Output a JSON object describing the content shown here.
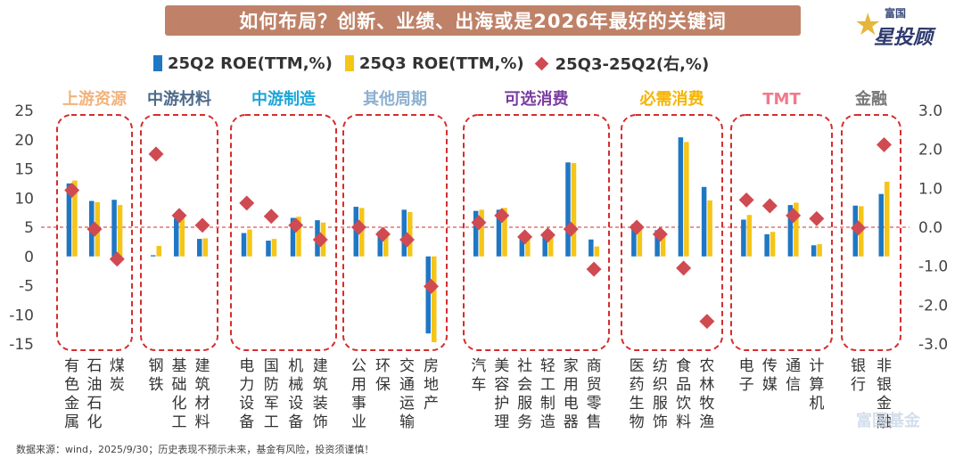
{
  "title": "如何布局？创新、业绩、出海或是2026年最好的关键词",
  "logo": {
    "brand_small": "富国",
    "brand_big": "星投顾"
  },
  "footer": "数据来源：wind，2025/9/30；历史表现不预示未来，基金有风险，投资须谨慎！",
  "watermark": "富国基金",
  "colors": {
    "q2": "#1f77c4",
    "q3": "#f5c518",
    "diff": "#d04a52",
    "title_bg": "#bf8268",
    "box": "#d62d2d"
  },
  "chart_data": {
    "type": "bar",
    "title": "如何布局？创新、业绩、出海或是2026年最好的关键词",
    "legend": [
      "25Q2 ROE(TTM,%)",
      "25Q3 ROE(TTM,%)",
      "25Q3-25Q2(右,%)"
    ],
    "legend_position": "top",
    "left_axis": {
      "ylim": [
        -15,
        25
      ],
      "ticks": [
        "-15",
        "-10",
        "-5",
        "0",
        "5",
        "10",
        "15",
        "20",
        "25"
      ]
    },
    "right_axis": {
      "ylim": [
        -3.0,
        3.0
      ],
      "ticks": [
        "-3.0",
        "-2.0",
        "-1.0",
        "0.0",
        "1.0",
        "2.0",
        "3.0"
      ]
    },
    "reference_line": "dashed at 5 (left) / 0.0 (right)",
    "groups": [
      {
        "name": "上游资源",
        "color": "#f2b27a",
        "sectors": [
          {
            "label": "有色金属",
            "q2": 12.5,
            "q3": 13.0,
            "diff": 0.95
          },
          {
            "label": "石油石化",
            "q2": 9.5,
            "q3": 9.3,
            "diff": -0.05
          },
          {
            "label": "煤炭",
            "q2": 9.7,
            "q3": 8.8,
            "diff": -0.82
          }
        ]
      },
      {
        "name": "中游材料",
        "color": "#4d6a8a",
        "sectors": [
          {
            "label": "钢铁",
            "q2": 0.2,
            "q3": 1.8,
            "diff": 1.88
          },
          {
            "label": "基础化工",
            "q2": 6.5,
            "q3": 6.8,
            "diff": 0.3
          },
          {
            "label": "建筑材料",
            "q2": 3.0,
            "q3": 3.1,
            "diff": 0.05
          }
        ]
      },
      {
        "name": "中游制造",
        "color": "#1ba6d9",
        "sectors": [
          {
            "label": "电力设备",
            "q2": 4.0,
            "q3": 4.6,
            "diff": 0.62
          },
          {
            "label": "国防军工",
            "q2": 2.7,
            "q3": 3.0,
            "diff": 0.28
          },
          {
            "label": "机械设备",
            "q2": 6.6,
            "q3": 6.8,
            "diff": 0.05
          },
          {
            "label": "建筑装饰",
            "q2": 6.2,
            "q3": 5.8,
            "diff": -0.32
          }
        ]
      },
      {
        "name": "其他周期",
        "color": "#8cb0d0",
        "sectors": [
          {
            "label": "公用事业",
            "q2": 8.5,
            "q3": 8.3,
            "diff": 0.0
          },
          {
            "label": "环保",
            "q2": 4.3,
            "q3": 4.2,
            "diff": -0.18
          },
          {
            "label": "交通运输",
            "q2": 8.0,
            "q3": 7.6,
            "diff": -0.32
          },
          {
            "label": "房地产",
            "q2": -13.2,
            "q3": -14.7,
            "diff": -1.52
          }
        ]
      },
      {
        "name": "可选消费",
        "color": "#7a3ca0",
        "sectors": [
          {
            "label": "汽车",
            "q2": 7.8,
            "q3": 8.0,
            "diff": 0.12
          },
          {
            "label": "美容护理",
            "q2": 8.0,
            "q3": 8.3,
            "diff": 0.3
          },
          {
            "label": "社会服务",
            "q2": 3.5,
            "q3": 3.3,
            "diff": -0.25
          },
          {
            "label": "轻工制造",
            "q2": 3.8,
            "q3": 3.6,
            "diff": -0.2
          },
          {
            "label": "家用电器",
            "q2": 16.1,
            "q3": 16.0,
            "diff": -0.05
          },
          {
            "label": "商贸零售",
            "q2": 2.9,
            "q3": 1.7,
            "diff": -1.08
          }
        ]
      },
      {
        "name": "必需消费",
        "color": "#f5b400",
        "sectors": [
          {
            "label": "医药生物",
            "q2": 5.5,
            "q3": 5.4,
            "diff": 0.0
          },
          {
            "label": "纺织服饰",
            "q2": 4.5,
            "q3": 4.3,
            "diff": -0.18
          },
          {
            "label": "食品饮料",
            "q2": 20.4,
            "q3": 19.6,
            "diff": -1.05
          },
          {
            "label": "农林牧渔",
            "q2": 11.9,
            "q3": 9.6,
            "diff": -2.42
          }
        ]
      },
      {
        "name": "TMT",
        "color": "#f07a8c",
        "sectors": [
          {
            "label": "电子",
            "q2": 6.3,
            "q3": 7.1,
            "diff": 0.7
          },
          {
            "label": "传媒",
            "q2": 3.8,
            "q3": 4.2,
            "diff": 0.55
          },
          {
            "label": "通信",
            "q2": 8.8,
            "q3": 9.2,
            "diff": 0.3
          },
          {
            "label": "计算机",
            "q2": 1.9,
            "q3": 2.1,
            "diff": 0.22
          }
        ]
      },
      {
        "name": "金融",
        "color": "#777777",
        "sectors": [
          {
            "label": "银行",
            "q2": 8.7,
            "q3": 8.6,
            "diff": -0.02
          },
          {
            "label": "非银金融",
            "q2": 10.7,
            "q3": 12.8,
            "diff": 2.12
          }
        ]
      }
    ]
  }
}
